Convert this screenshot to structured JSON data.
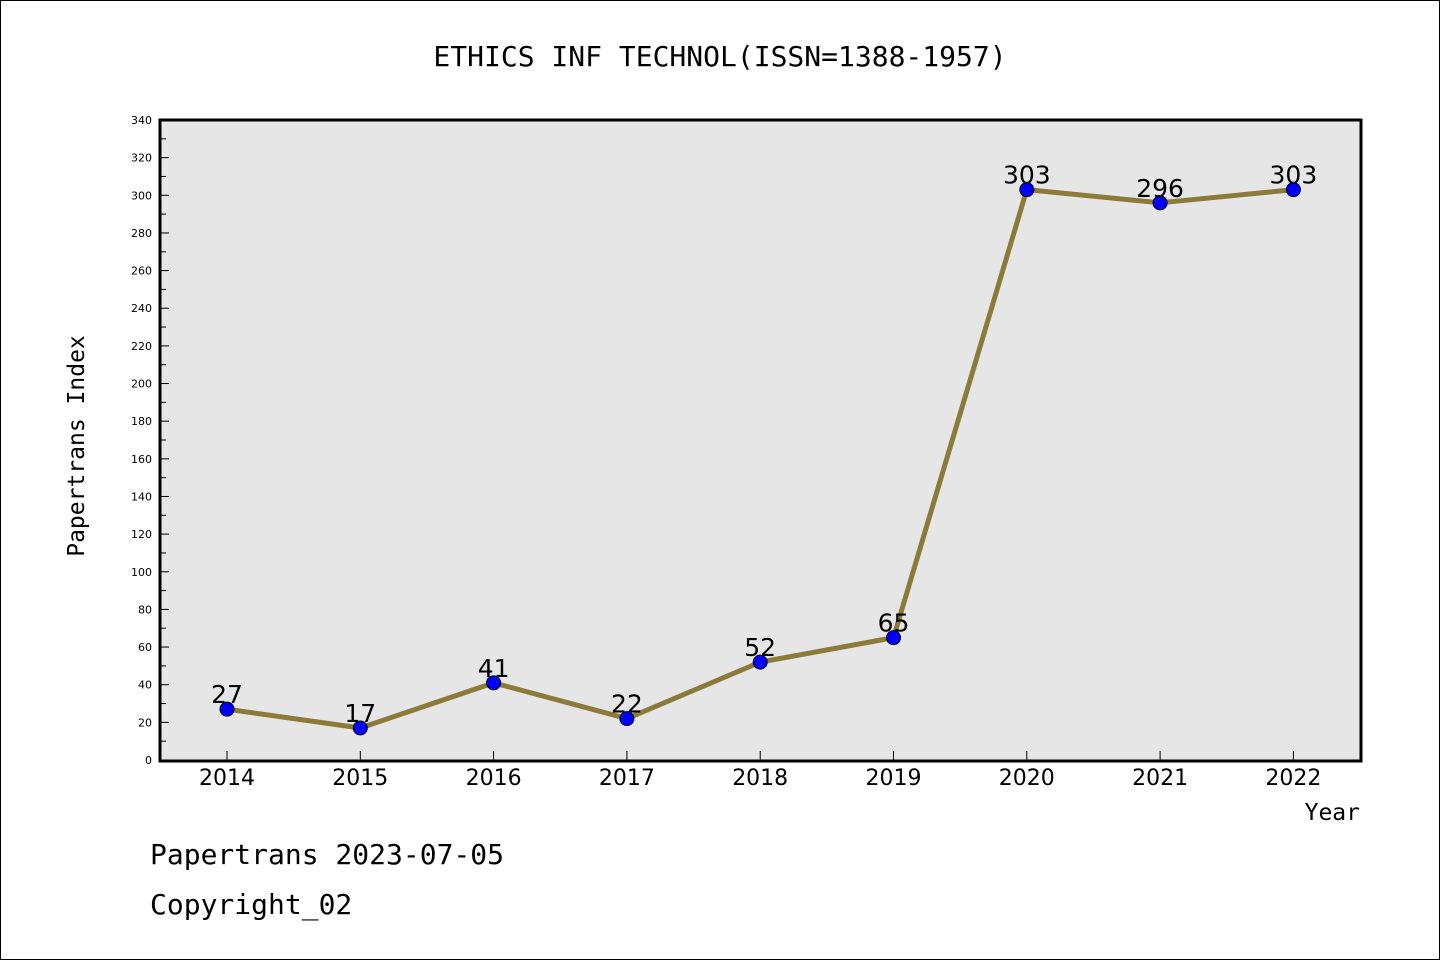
{
  "chart_data": {
    "type": "line",
    "title": "ETHICS INF TECHNOL(ISSN=1388-1957)",
    "xlabel": "Year",
    "ylabel": "Papertrans Index",
    "x": [
      "2014",
      "2015",
      "2016",
      "2017",
      "2018",
      "2019",
      "2020",
      "2021",
      "2022"
    ],
    "series": [
      {
        "values": [
          27,
          17,
          41,
          22,
          52,
          65,
          303,
          296,
          303
        ]
      }
    ],
    "ylim": [
      0,
      340
    ],
    "ytick_step": 20,
    "grid": false,
    "colors": {
      "line": "#8b7a3a",
      "marker": "#0000ff",
      "plot_bg": "#e6e6e6"
    }
  },
  "footer": {
    "line1": "Papertrans 2023-07-05",
    "line2": "Copyright_02"
  }
}
